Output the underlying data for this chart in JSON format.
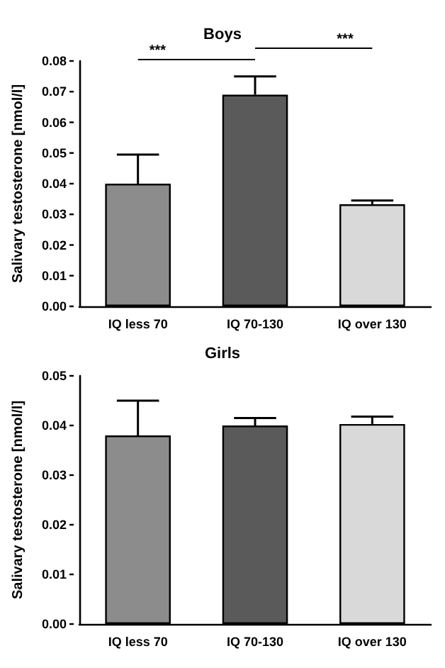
{
  "chart_data": [
    {
      "type": "bar",
      "title": "Boys",
      "ylabel": "Salivary testosterone [nmol/l]",
      "categories": [
        "IQ less 70",
        "IQ 70-130",
        "IQ over 130"
      ],
      "values": [
        0.04,
        0.069,
        0.0333
      ],
      "colors": [
        "#8c8c8c",
        "#5a5a5a",
        "#d9d9d9"
      ],
      "errors": [
        [
          0.04,
          0.0495
        ],
        [
          0.069,
          0.075
        ],
        [
          0.0333,
          0.0345
        ]
      ],
      "ylim": [
        0,
        0.08
      ],
      "yticks": [
        {
          "value": 0,
          "label": "0.00"
        },
        0.01,
        0.02,
        0.03,
        0.04,
        0.05,
        0.06,
        0.07,
        0.08
      ],
      "annotations": [
        "***",
        "***"
      ],
      "grid": false
    },
    {
      "type": "bar",
      "title": "Girls",
      "ylabel": "Salivary testosterone [nmol/l]",
      "categories": [
        "IQ less 70",
        "IQ 70-130",
        "IQ over 130"
      ],
      "values": [
        0.038,
        0.04,
        0.0403
      ],
      "colors": [
        "#8c8c8c",
        "#5a5a5a",
        "#d9d9d9"
      ],
      "errors": [
        [
          0.038,
          0.045
        ],
        [
          0.04,
          0.0415
        ],
        [
          0.0403,
          0.0418
        ]
      ],
      "ylim": [
        0,
        0.05
      ],
      "yticks": [
        {
          "value": 0,
          "label": "0.00"
        },
        0.01,
        0.02,
        0.03,
        0.04,
        0.05
      ],
      "grid": false
    }
  ]
}
